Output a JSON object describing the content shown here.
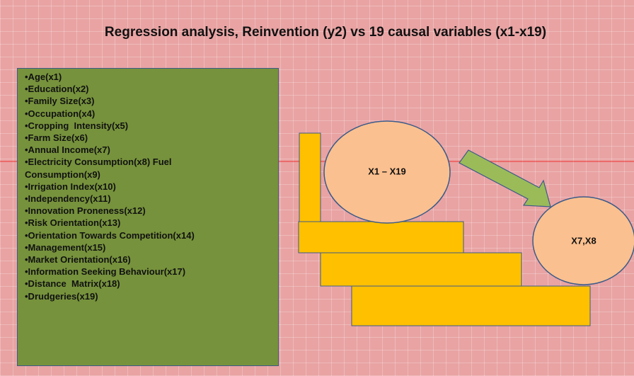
{
  "title": "Regression analysis, Reinvention (y2) vs 19 causal variables (x1-x19)",
  "variables": [
    "•Age(x1)",
    "•Education(x2)",
    "•Family Size(x3)",
    "•Occupation(x4)",
    "•Cropping  Intensity(x5)",
    "•Farm Size(x6)",
    "•Annual Income(x7)",
    "•Electricity Consumption(x8) Fuel Consumption(x9)",
    "•Irrigation Index(x10)",
    "•Independency(x11)",
    "•Innovation Proneness(x12)",
    "•Risk Orientation(x13)",
    "•Orientation Towards Competition(x14)",
    "•Management(x15)",
    "•Market Orientation(x16)",
    "•Information Seeking Behaviour(x17)",
    "•Distance  Matrix(x18)",
    "•Drudgeries(x19)"
  ],
  "nodes": [
    {
      "label": "X1 – X19"
    },
    {
      "label": "X7,X8"
    }
  ]
}
